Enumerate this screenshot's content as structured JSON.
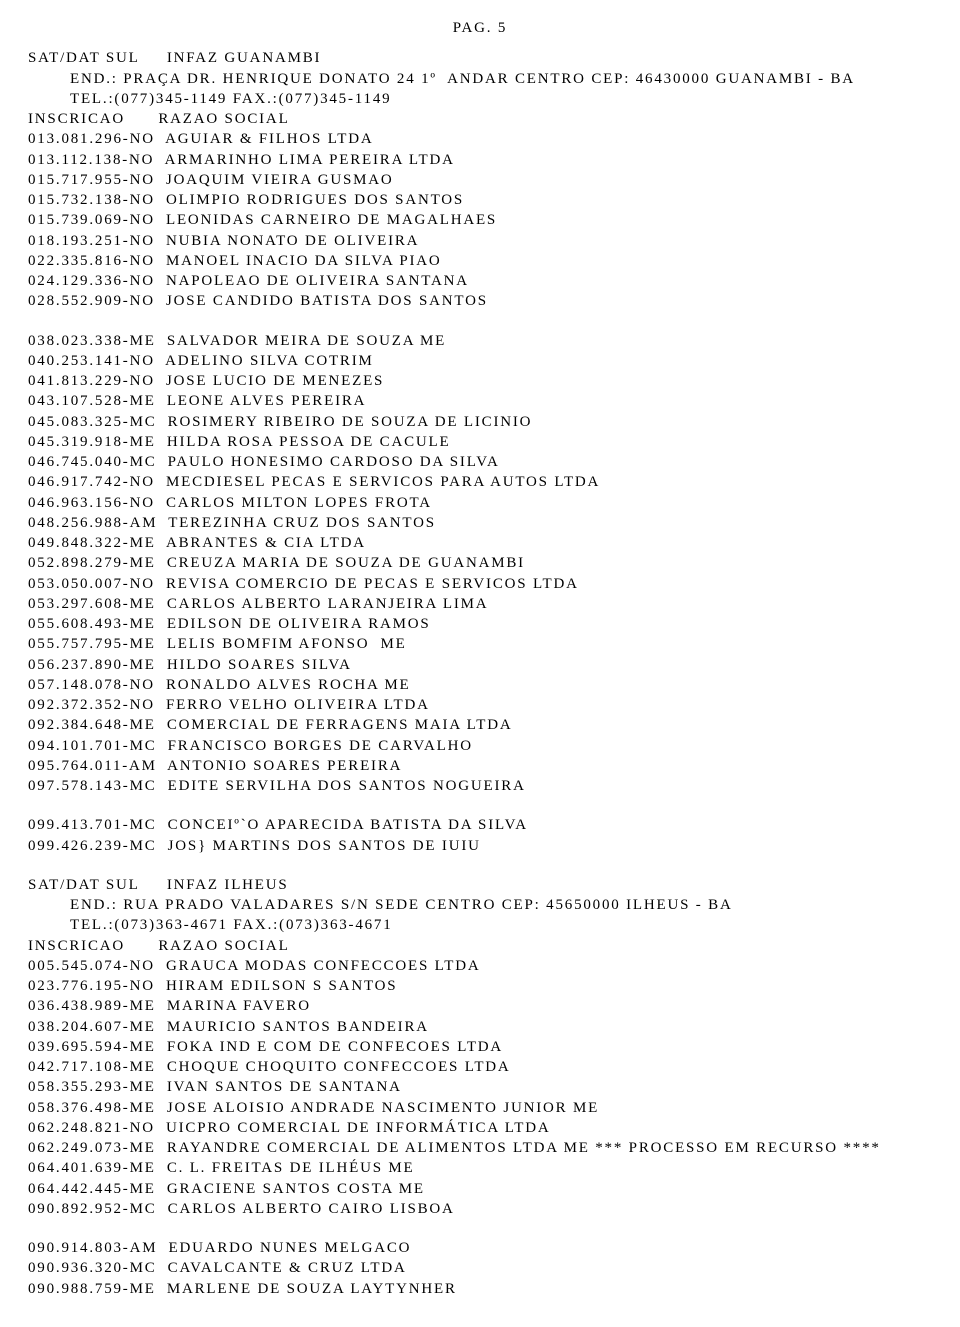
{
  "page_label": "PAG.  5",
  "sections": [
    {
      "header": {
        "region_col1": "SAT/DAT SUL",
        "region_col2": "INFAZ GUANAMBI",
        "address": "END.: PRAÇA DR. HENRIQUE DONATO 24 1º  ANDAR CENTRO CEP: 46430000 GUANAMBI - BA",
        "phone": "TEL.:(077)345-1149 FAX.:(077)345-1149",
        "col1_label": "INSCRICAO",
        "col2_label": "RAZAO SOCIAL"
      },
      "groups": [
        [
          {
            "code": "013.081.296-NO",
            "name": "AGUIAR & FILHOS LTDA"
          },
          {
            "code": "013.112.138-NO",
            "name": "ARMARINHO LIMA PEREIRA LTDA"
          },
          {
            "code": "015.717.955-NO",
            "name": "JOAQUIM VIEIRA GUSMAO"
          },
          {
            "code": "015.732.138-NO",
            "name": "OLIMPIO RODRIGUES DOS SANTOS"
          },
          {
            "code": "015.739.069-NO",
            "name": "LEONIDAS CARNEIRO DE MAGALHAES"
          },
          {
            "code": "018.193.251-NO",
            "name": "NUBIA NONATO DE OLIVEIRA"
          },
          {
            "code": "022.335.816-NO",
            "name": "MANOEL INACIO DA SILVA PIAO"
          },
          {
            "code": "024.129.336-NO",
            "name": "NAPOLEAO DE OLIVEIRA SANTANA"
          },
          {
            "code": "028.552.909-NO",
            "name": "JOSE CANDIDO BATISTA DOS SANTOS"
          }
        ],
        [
          {
            "code": "038.023.338-ME",
            "name": "SALVADOR MEIRA DE SOUZA ME"
          },
          {
            "code": "040.253.141-NO",
            "name": "ADELINO SILVA COTRIM"
          },
          {
            "code": "041.813.229-NO",
            "name": "JOSE LUCIO DE MENEZES"
          },
          {
            "code": "043.107.528-ME",
            "name": "LEONE ALVES PEREIRA"
          },
          {
            "code": "045.083.325-MC",
            "name": "ROSIMERY RIBEIRO DE SOUZA DE LICINIO"
          },
          {
            "code": "045.319.918-ME",
            "name": "HILDA ROSA PESSOA DE CACULE"
          },
          {
            "code": "046.745.040-MC",
            "name": "PAULO HONESIMO CARDOSO DA SILVA"
          },
          {
            "code": "046.917.742-NO",
            "name": "MECDIESEL PECAS E SERVICOS PARA AUTOS LTDA"
          },
          {
            "code": "046.963.156-NO",
            "name": "CARLOS MILTON LOPES FROTA"
          },
          {
            "code": "048.256.988-AM",
            "name": "TEREZINHA CRUZ DOS SANTOS"
          },
          {
            "code": "049.848.322-ME",
            "name": "ABRANTES & CIA LTDA"
          },
          {
            "code": "052.898.279-ME",
            "name": "CREUZA MARIA DE SOUZA DE GUANAMBI"
          },
          {
            "code": "053.050.007-NO",
            "name": "REVISA COMERCIO DE PECAS E SERVICOS LTDA"
          },
          {
            "code": "053.297.608-ME",
            "name": "CARLOS ALBERTO LARANJEIRA LIMA"
          },
          {
            "code": "055.608.493-ME",
            "name": "EDILSON DE OLIVEIRA RAMOS"
          },
          {
            "code": "055.757.795-ME",
            "name": "LELIS BOMFIM AFONSO  ME"
          },
          {
            "code": "056.237.890-ME",
            "name": "HILDO SOARES SILVA"
          },
          {
            "code": "057.148.078-NO",
            "name": "RONALDO ALVES ROCHA ME"
          },
          {
            "code": "092.372.352-NO",
            "name": "FERRO VELHO OLIVEIRA LTDA"
          },
          {
            "code": "092.384.648-ME",
            "name": "COMERCIAL DE FERRAGENS MAIA LTDA"
          },
          {
            "code": "094.101.701-MC",
            "name": "FRANCISCO BORGES DE CARVALHO"
          },
          {
            "code": "095.764.011-AM",
            "name": "ANTONIO SOARES PEREIRA"
          },
          {
            "code": "097.578.143-MC",
            "name": "EDITE SERVILHA DOS SANTOS NOGUEIRA"
          }
        ],
        [
          {
            "code": "099.413.701-MC",
            "name": "CONCEIº`O APARECIDA BATISTA DA SILVA"
          },
          {
            "code": "099.426.239-MC",
            "name": "JOS} MARTINS DOS SANTOS DE IUIU"
          }
        ]
      ]
    },
    {
      "header": {
        "region_col1": "SAT/DAT SUL",
        "region_col2": "INFAZ ILHEUS",
        "address": "END.: RUA PRADO VALADARES S/N SEDE CENTRO CEP: 45650000 ILHEUS - BA",
        "phone": "TEL.:(073)363-4671 FAX.:(073)363-4671",
        "col1_label": "INSCRICAO",
        "col2_label": "RAZAO SOCIAL"
      },
      "groups": [
        [
          {
            "code": "005.545.074-NO",
            "name": "GRAUCA MODAS CONFECCOES LTDA"
          },
          {
            "code": "023.776.195-NO",
            "name": "HIRAM EDILSON S SANTOS"
          },
          {
            "code": "036.438.989-ME",
            "name": "MARINA FAVERO"
          },
          {
            "code": "038.204.607-ME",
            "name": "MAURICIO SANTOS BANDEIRA"
          },
          {
            "code": "039.695.594-ME",
            "name": "FOKA IND E COM DE CONFECOES LTDA"
          },
          {
            "code": "042.717.108-ME",
            "name": "CHOQUE CHOQUITO CONFECCOES LTDA"
          },
          {
            "code": "058.355.293-ME",
            "name": "IVAN SANTOS DE SANTANA"
          },
          {
            "code": "058.376.498-ME",
            "name": "JOSE ALOISIO ANDRADE NASCIMENTO JUNIOR ME"
          },
          {
            "code": "062.248.821-NO",
            "name": "UICPRO COMERCIAL DE INFORMÁTICA LTDA"
          },
          {
            "code": "062.249.073-ME",
            "name": "RAYANDRE COMERCIAL DE ALIMENTOS LTDA ME *** PROCESSO EM RECURSO ****"
          },
          {
            "code": "064.401.639-ME",
            "name": "C. L. FREITAS DE ILHÉUS ME"
          },
          {
            "code": "064.442.445-ME",
            "name": "GRACIENE SANTOS COSTA ME"
          },
          {
            "code": "090.892.952-MC",
            "name": "CARLOS ALBERTO CAIRO LISBOA"
          }
        ],
        [
          {
            "code": "090.914.803-AM",
            "name": "EDUARDO NUNES MELGACO"
          },
          {
            "code": "090.936.320-MC",
            "name": "CAVALCANTE & CRUZ LTDA"
          },
          {
            "code": "090.988.759-ME",
            "name": "MARLENE DE SOUZA LAYTYNHER"
          }
        ]
      ]
    }
  ]
}
